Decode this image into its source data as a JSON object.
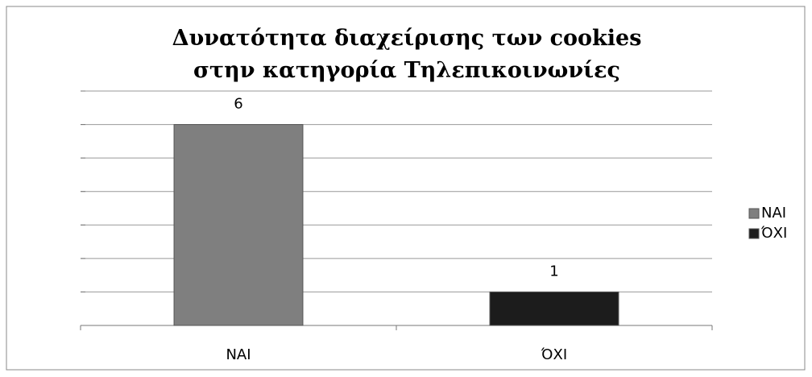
{
  "chart_data": {
    "type": "bar",
    "title": "Δυνατότητα διαχείρισης των cookies στην κατηγορία Τηλεπικοινωνίες",
    "categories": [
      "NAI",
      "ΌΧΙ"
    ],
    "values": [
      6,
      1
    ],
    "colors": [
      "#7f7f7f",
      "#1c1c1c"
    ],
    "ylim": [
      0,
      7
    ],
    "yticks": [
      0,
      1,
      2,
      3,
      4,
      5,
      6,
      7
    ],
    "grid": true,
    "legend": "right"
  }
}
